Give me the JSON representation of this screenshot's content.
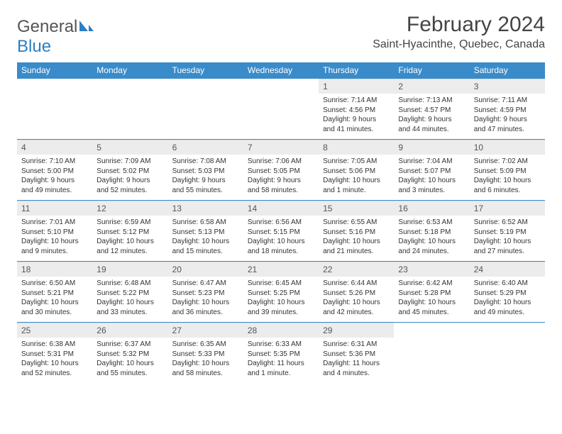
{
  "logo": {
    "word1": "General",
    "word2": "Blue",
    "shape_color": "#2b7fc3",
    "gray_color": "#555555"
  },
  "title": "February 2024",
  "subtitle": "Saint-Hyacinthe, Quebec, Canada",
  "colors": {
    "header_bg": "#3a8bc9",
    "header_text": "#ffffff",
    "daynum_bg": "#ececec",
    "text": "#333333",
    "rule": "#3a8bc9"
  },
  "columns": [
    "Sunday",
    "Monday",
    "Tuesday",
    "Wednesday",
    "Thursday",
    "Friday",
    "Saturday"
  ],
  "weeks": [
    [
      null,
      null,
      null,
      null,
      {
        "n": "1",
        "sr": "Sunrise: 7:14 AM",
        "ss": "Sunset: 4:56 PM",
        "d1": "Daylight: 9 hours",
        "d2": "and 41 minutes."
      },
      {
        "n": "2",
        "sr": "Sunrise: 7:13 AM",
        "ss": "Sunset: 4:57 PM",
        "d1": "Daylight: 9 hours",
        "d2": "and 44 minutes."
      },
      {
        "n": "3",
        "sr": "Sunrise: 7:11 AM",
        "ss": "Sunset: 4:59 PM",
        "d1": "Daylight: 9 hours",
        "d2": "and 47 minutes."
      }
    ],
    [
      {
        "n": "4",
        "sr": "Sunrise: 7:10 AM",
        "ss": "Sunset: 5:00 PM",
        "d1": "Daylight: 9 hours",
        "d2": "and 49 minutes."
      },
      {
        "n": "5",
        "sr": "Sunrise: 7:09 AM",
        "ss": "Sunset: 5:02 PM",
        "d1": "Daylight: 9 hours",
        "d2": "and 52 minutes."
      },
      {
        "n": "6",
        "sr": "Sunrise: 7:08 AM",
        "ss": "Sunset: 5:03 PM",
        "d1": "Daylight: 9 hours",
        "d2": "and 55 minutes."
      },
      {
        "n": "7",
        "sr": "Sunrise: 7:06 AM",
        "ss": "Sunset: 5:05 PM",
        "d1": "Daylight: 9 hours",
        "d2": "and 58 minutes."
      },
      {
        "n": "8",
        "sr": "Sunrise: 7:05 AM",
        "ss": "Sunset: 5:06 PM",
        "d1": "Daylight: 10 hours",
        "d2": "and 1 minute."
      },
      {
        "n": "9",
        "sr": "Sunrise: 7:04 AM",
        "ss": "Sunset: 5:07 PM",
        "d1": "Daylight: 10 hours",
        "d2": "and 3 minutes."
      },
      {
        "n": "10",
        "sr": "Sunrise: 7:02 AM",
        "ss": "Sunset: 5:09 PM",
        "d1": "Daylight: 10 hours",
        "d2": "and 6 minutes."
      }
    ],
    [
      {
        "n": "11",
        "sr": "Sunrise: 7:01 AM",
        "ss": "Sunset: 5:10 PM",
        "d1": "Daylight: 10 hours",
        "d2": "and 9 minutes."
      },
      {
        "n": "12",
        "sr": "Sunrise: 6:59 AM",
        "ss": "Sunset: 5:12 PM",
        "d1": "Daylight: 10 hours",
        "d2": "and 12 minutes."
      },
      {
        "n": "13",
        "sr": "Sunrise: 6:58 AM",
        "ss": "Sunset: 5:13 PM",
        "d1": "Daylight: 10 hours",
        "d2": "and 15 minutes."
      },
      {
        "n": "14",
        "sr": "Sunrise: 6:56 AM",
        "ss": "Sunset: 5:15 PM",
        "d1": "Daylight: 10 hours",
        "d2": "and 18 minutes."
      },
      {
        "n": "15",
        "sr": "Sunrise: 6:55 AM",
        "ss": "Sunset: 5:16 PM",
        "d1": "Daylight: 10 hours",
        "d2": "and 21 minutes."
      },
      {
        "n": "16",
        "sr": "Sunrise: 6:53 AM",
        "ss": "Sunset: 5:18 PM",
        "d1": "Daylight: 10 hours",
        "d2": "and 24 minutes."
      },
      {
        "n": "17",
        "sr": "Sunrise: 6:52 AM",
        "ss": "Sunset: 5:19 PM",
        "d1": "Daylight: 10 hours",
        "d2": "and 27 minutes."
      }
    ],
    [
      {
        "n": "18",
        "sr": "Sunrise: 6:50 AM",
        "ss": "Sunset: 5:21 PM",
        "d1": "Daylight: 10 hours",
        "d2": "and 30 minutes."
      },
      {
        "n": "19",
        "sr": "Sunrise: 6:48 AM",
        "ss": "Sunset: 5:22 PM",
        "d1": "Daylight: 10 hours",
        "d2": "and 33 minutes."
      },
      {
        "n": "20",
        "sr": "Sunrise: 6:47 AM",
        "ss": "Sunset: 5:23 PM",
        "d1": "Daylight: 10 hours",
        "d2": "and 36 minutes."
      },
      {
        "n": "21",
        "sr": "Sunrise: 6:45 AM",
        "ss": "Sunset: 5:25 PM",
        "d1": "Daylight: 10 hours",
        "d2": "and 39 minutes."
      },
      {
        "n": "22",
        "sr": "Sunrise: 6:44 AM",
        "ss": "Sunset: 5:26 PM",
        "d1": "Daylight: 10 hours",
        "d2": "and 42 minutes."
      },
      {
        "n": "23",
        "sr": "Sunrise: 6:42 AM",
        "ss": "Sunset: 5:28 PM",
        "d1": "Daylight: 10 hours",
        "d2": "and 45 minutes."
      },
      {
        "n": "24",
        "sr": "Sunrise: 6:40 AM",
        "ss": "Sunset: 5:29 PM",
        "d1": "Daylight: 10 hours",
        "d2": "and 49 minutes."
      }
    ],
    [
      {
        "n": "25",
        "sr": "Sunrise: 6:38 AM",
        "ss": "Sunset: 5:31 PM",
        "d1": "Daylight: 10 hours",
        "d2": "and 52 minutes."
      },
      {
        "n": "26",
        "sr": "Sunrise: 6:37 AM",
        "ss": "Sunset: 5:32 PM",
        "d1": "Daylight: 10 hours",
        "d2": "and 55 minutes."
      },
      {
        "n": "27",
        "sr": "Sunrise: 6:35 AM",
        "ss": "Sunset: 5:33 PM",
        "d1": "Daylight: 10 hours",
        "d2": "and 58 minutes."
      },
      {
        "n": "28",
        "sr": "Sunrise: 6:33 AM",
        "ss": "Sunset: 5:35 PM",
        "d1": "Daylight: 11 hours",
        "d2": "and 1 minute."
      },
      {
        "n": "29",
        "sr": "Sunrise: 6:31 AM",
        "ss": "Sunset: 5:36 PM",
        "d1": "Daylight: 11 hours",
        "d2": "and 4 minutes."
      },
      null,
      null
    ]
  ]
}
